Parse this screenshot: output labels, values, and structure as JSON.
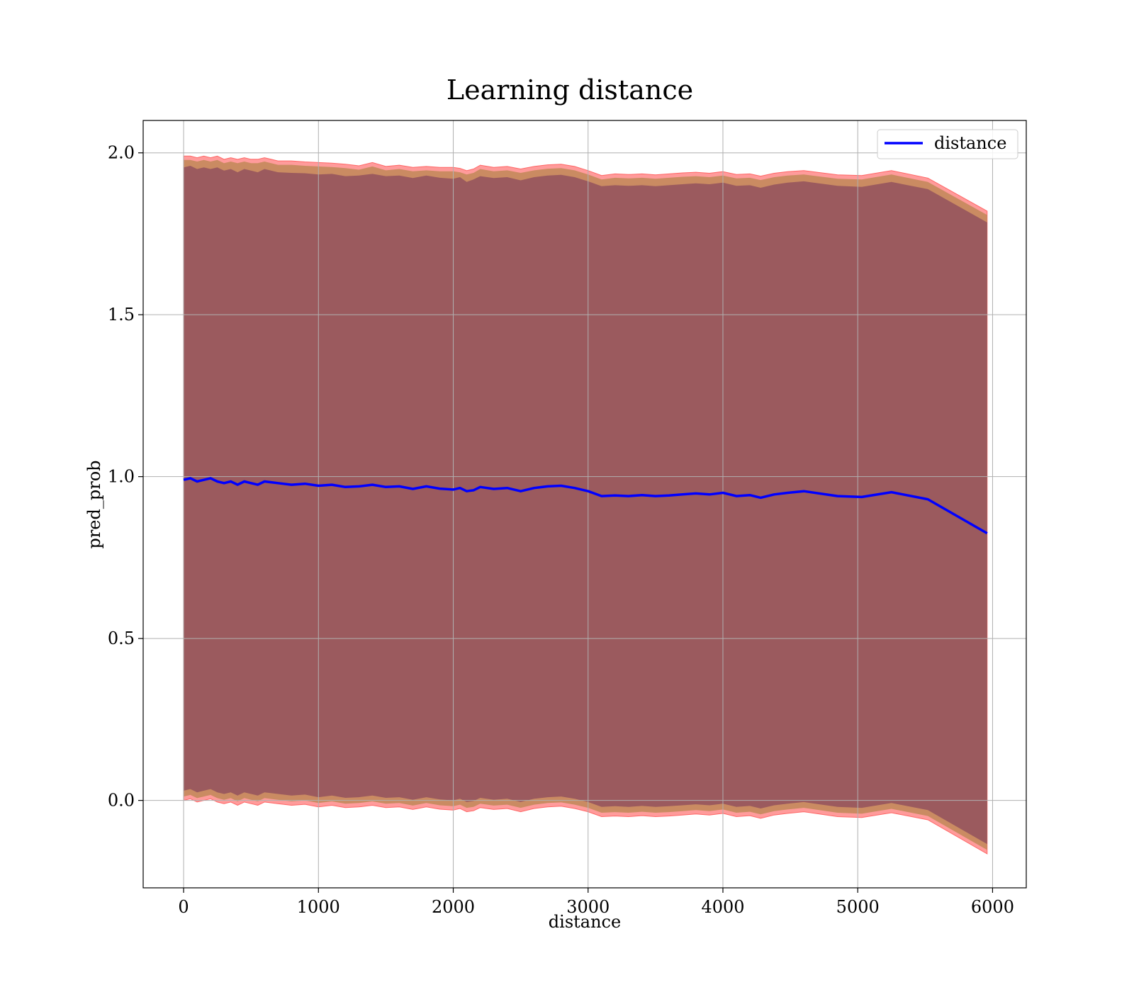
{
  "chart_data": {
    "type": "line",
    "title": "Learning distance",
    "xlabel": "distance",
    "ylabel": "pred_prob",
    "xlim": [
      -300,
      6250
    ],
    "ylim": [
      -0.27,
      2.1
    ],
    "xticks": [
      0,
      1000,
      2000,
      3000,
      4000,
      5000,
      6000
    ],
    "xtick_labels": [
      "0",
      "1000",
      "2000",
      "3000",
      "4000",
      "5000",
      "6000"
    ],
    "yticks": [
      0.0,
      0.5,
      1.0,
      1.5,
      2.0
    ],
    "ytick_labels": [
      "0.0",
      "0.5",
      "1.0",
      "1.5",
      "2.0"
    ],
    "grid": true,
    "legend": {
      "position": "top-right",
      "entries": [
        "distance"
      ]
    },
    "colors": {
      "line": "#0000ff",
      "band_outer": "#ff6666",
      "band_middle": "#c48a5c",
      "band_inner": "#8b4a5e",
      "grid": "#b0b0b0"
    },
    "series": [
      {
        "name": "distance",
        "x": [
          0,
          50,
          100,
          150,
          200,
          250,
          300,
          350,
          400,
          450,
          500,
          550,
          600,
          700,
          800,
          900,
          1000,
          1100,
          1200,
          1300,
          1400,
          1500,
          1600,
          1700,
          1800,
          1900,
          2000,
          2050,
          2100,
          2150,
          2200,
          2300,
          2400,
          2500,
          2600,
          2700,
          2800,
          2900,
          3000,
          3100,
          3200,
          3300,
          3400,
          3500,
          3600,
          3700,
          3800,
          3900,
          4000,
          4100,
          4200,
          4280,
          4380,
          4480,
          4600,
          4850,
          5030,
          5250,
          5520,
          5960
        ],
        "values": [
          0.99,
          0.995,
          0.985,
          0.99,
          0.995,
          0.985,
          0.98,
          0.985,
          0.975,
          0.985,
          0.98,
          0.975,
          0.985,
          0.98,
          0.975,
          0.978,
          0.972,
          0.975,
          0.968,
          0.97,
          0.975,
          0.968,
          0.97,
          0.962,
          0.97,
          0.963,
          0.96,
          0.965,
          0.955,
          0.958,
          0.968,
          0.962,
          0.965,
          0.955,
          0.965,
          0.97,
          0.972,
          0.965,
          0.955,
          0.94,
          0.942,
          0.94,
          0.943,
          0.94,
          0.942,
          0.945,
          0.948,
          0.945,
          0.95,
          0.94,
          0.943,
          0.935,
          0.945,
          0.95,
          0.955,
          0.94,
          0.937,
          0.952,
          0.93,
          0.825
        ],
        "upper_outer": [
          1.99,
          1.99,
          1.985,
          1.99,
          1.985,
          1.99,
          1.98,
          1.985,
          1.98,
          1.985,
          1.98,
          1.98,
          1.985,
          1.975,
          1.975,
          1.972,
          1.97,
          1.968,
          1.965,
          1.96,
          1.97,
          1.958,
          1.962,
          1.955,
          1.958,
          1.955,
          1.955,
          1.952,
          1.945,
          1.95,
          1.962,
          1.955,
          1.958,
          1.95,
          1.958,
          1.963,
          1.965,
          1.958,
          1.945,
          1.93,
          1.935,
          1.933,
          1.935,
          1.932,
          1.935,
          1.938,
          1.94,
          1.937,
          1.942,
          1.933,
          1.935,
          1.928,
          1.937,
          1.942,
          1.945,
          1.932,
          1.93,
          1.945,
          1.922,
          1.82
        ],
        "upper_inner": [
          1.955,
          1.96,
          1.95,
          1.955,
          1.95,
          1.955,
          1.945,
          1.95,
          1.94,
          1.95,
          1.945,
          1.94,
          1.95,
          1.94,
          1.938,
          1.937,
          1.933,
          1.935,
          1.928,
          1.93,
          1.935,
          1.928,
          1.93,
          1.922,
          1.93,
          1.923,
          1.92,
          1.925,
          1.91,
          1.918,
          1.928,
          1.922,
          1.925,
          1.915,
          1.925,
          1.93,
          1.932,
          1.925,
          1.912,
          1.897,
          1.9,
          1.898,
          1.9,
          1.897,
          1.9,
          1.903,
          1.906,
          1.903,
          1.908,
          1.898,
          1.9,
          1.892,
          1.902,
          1.908,
          1.912,
          1.898,
          1.895,
          1.91,
          1.888,
          1.785
        ],
        "lower_inner": [
          0.03,
          0.035,
          0.025,
          0.03,
          0.035,
          0.025,
          0.02,
          0.025,
          0.015,
          0.025,
          0.02,
          0.015,
          0.025,
          0.02,
          0.015,
          0.018,
          0.01,
          0.015,
          0.008,
          0.01,
          0.015,
          0.008,
          0.01,
          0.002,
          0.01,
          0.003,
          0.0,
          0.005,
          -0.005,
          -0.002,
          0.008,
          0.002,
          0.005,
          -0.005,
          0.005,
          0.01,
          0.012,
          0.005,
          -0.005,
          -0.02,
          -0.018,
          -0.02,
          -0.017,
          -0.02,
          -0.018,
          -0.015,
          -0.012,
          -0.015,
          -0.01,
          -0.02,
          -0.017,
          -0.025,
          -0.015,
          -0.01,
          -0.005,
          -0.02,
          -0.023,
          -0.008,
          -0.03,
          -0.135
        ],
        "lower_outer": [
          0.0,
          0.005,
          -0.005,
          0.0,
          0.005,
          -0.005,
          -0.01,
          -0.005,
          -0.015,
          -0.005,
          -0.01,
          -0.015,
          -0.005,
          -0.01,
          -0.015,
          -0.012,
          -0.02,
          -0.015,
          -0.022,
          -0.02,
          -0.015,
          -0.022,
          -0.02,
          -0.028,
          -0.02,
          -0.027,
          -0.03,
          -0.025,
          -0.035,
          -0.032,
          -0.022,
          -0.028,
          -0.025,
          -0.035,
          -0.025,
          -0.02,
          -0.018,
          -0.025,
          -0.035,
          -0.05,
          -0.048,
          -0.05,
          -0.047,
          -0.05,
          -0.048,
          -0.045,
          -0.042,
          -0.045,
          -0.04,
          -0.05,
          -0.047,
          -0.055,
          -0.045,
          -0.04,
          -0.035,
          -0.05,
          -0.053,
          -0.038,
          -0.06,
          -0.165
        ]
      }
    ]
  }
}
